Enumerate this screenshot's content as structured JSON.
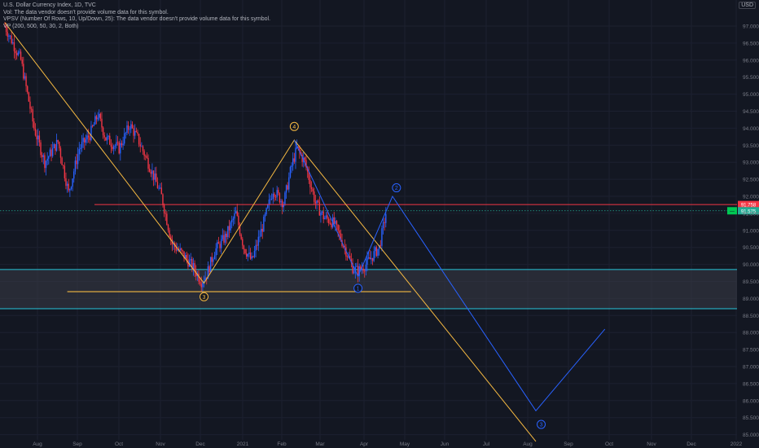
{
  "legend": {
    "line1": "U.S. Dollar Currency Index, 1D, TVC",
    "line2": "Vol: The data vendor doesn't provide volume data for this symbol.",
    "line3": "VPSV (Number Of Rows, 10, Up/Down, 25): The data vendor doesn't provide volume data for this symbol.",
    "line4": "VP (200, 500, 50, 30, 2, Both)"
  },
  "currency": "USD",
  "colors": {
    "background": "#131722",
    "up": "#2962ff",
    "down": "#f23645",
    "orange": "#f5b942",
    "blue_path": "#2962ff",
    "red_line": "#f23645",
    "zone_border": "#26c6da",
    "green_label": "#22ab94"
  },
  "chart_data": {
    "type": "candlestick",
    "title": "U.S. Dollar Currency Index, 1D, TVC",
    "y_axis": {
      "range": [
        84.5,
        97.5
      ],
      "ticks": [
        "85.000",
        "85.500",
        "86.000",
        "86.500",
        "87.000",
        "87.500",
        "88.000",
        "88.500",
        "89.000",
        "89.500",
        "90.000",
        "90.500",
        "91.000",
        "91.500",
        "92.000",
        "92.500",
        "93.000",
        "93.500",
        "94.000",
        "94.500",
        "95.000",
        "95.500",
        "96.000",
        "96.500",
        "97.000"
      ]
    },
    "x_axis": {
      "ticks": [
        "Aug",
        "Sep",
        "Oct",
        "Nov",
        "Dec",
        "2021",
        "Feb",
        "Mar",
        "Apr",
        "May",
        "Jun",
        "Jul",
        "Aug",
        "Sep",
        "Oct",
        "Nov",
        "Dec",
        "2022"
      ]
    },
    "price_anchors": [
      {
        "day": 0,
        "price": 97.0
      },
      {
        "day": 12,
        "price": 96.0
      },
      {
        "day": 22,
        "price": 94.0
      },
      {
        "day": 30,
        "price": 93.0
      },
      {
        "day": 40,
        "price": 93.6
      },
      {
        "day": 48,
        "price": 92.1
      },
      {
        "day": 56,
        "price": 93.4
      },
      {
        "day": 64,
        "price": 93.8
      },
      {
        "day": 70,
        "price": 94.4
      },
      {
        "day": 76,
        "price": 93.7
      },
      {
        "day": 86,
        "price": 93.4
      },
      {
        "day": 94,
        "price": 94.1
      },
      {
        "day": 100,
        "price": 93.7
      },
      {
        "day": 110,
        "price": 92.8
      },
      {
        "day": 118,
        "price": 92.0
      },
      {
        "day": 126,
        "price": 90.6
      },
      {
        "day": 134,
        "price": 90.3
      },
      {
        "day": 142,
        "price": 89.9
      },
      {
        "day": 148,
        "price": 89.5
      },
      {
        "day": 152,
        "price": 89.7
      },
      {
        "day": 158,
        "price": 90.4
      },
      {
        "day": 166,
        "price": 90.8
      },
      {
        "day": 174,
        "price": 91.5
      },
      {
        "day": 180,
        "price": 90.5
      },
      {
        "day": 186,
        "price": 90.1
      },
      {
        "day": 194,
        "price": 91.1
      },
      {
        "day": 202,
        "price": 92.2
      },
      {
        "day": 210,
        "price": 91.8
      },
      {
        "day": 216,
        "price": 92.9
      },
      {
        "day": 220,
        "price": 93.4
      },
      {
        "day": 226,
        "price": 93.0
      },
      {
        "day": 234,
        "price": 91.8
      },
      {
        "day": 240,
        "price": 91.4
      },
      {
        "day": 248,
        "price": 91.2
      },
      {
        "day": 256,
        "price": 90.5
      },
      {
        "day": 262,
        "price": 89.9
      },
      {
        "day": 266,
        "price": 89.8
      },
      {
        "day": 272,
        "price": 90.0
      },
      {
        "day": 278,
        "price": 90.3
      },
      {
        "day": 282,
        "price": 90.5
      },
      {
        "day": 287,
        "price": 91.5
      }
    ],
    "current_price": 91.575,
    "current_price_label": "91.575",
    "current_price_sub": "—",
    "resistance_line": {
      "price": 91.758,
      "label": "91.758"
    },
    "support_zone": {
      "top": 89.85,
      "bottom": 88.7
    },
    "orange_horizontal": {
      "price": 89.2,
      "day_start": 47,
      "day_end": 306
    },
    "orange_channel": [
      {
        "day": 0,
        "price": 97.1
      },
      {
        "day": 150,
        "price": 89.45
      },
      {
        "day": 218,
        "price": 93.65
      },
      {
        "day": 400,
        "price": 84.8
      }
    ],
    "blue_path": [
      {
        "day": 218,
        "price": 93.65
      },
      {
        "day": 266,
        "price": 89.65
      },
      {
        "day": 292,
        "price": 92.0
      },
      {
        "day": 400,
        "price": 85.7
      },
      {
        "day": 452,
        "price": 88.1
      }
    ],
    "wave_labels": [
      {
        "label": "4",
        "day": 218,
        "price": 94.05,
        "color": "orange"
      },
      {
        "label": "3",
        "day": 150,
        "price": 89.05,
        "color": "orange"
      },
      {
        "label": "1",
        "day": 266,
        "price": 89.3,
        "color": "blue"
      },
      {
        "label": "2",
        "day": 295,
        "price": 92.25,
        "color": "blue"
      },
      {
        "label": "3",
        "day": 404,
        "price": 85.3,
        "color": "blue"
      }
    ]
  }
}
